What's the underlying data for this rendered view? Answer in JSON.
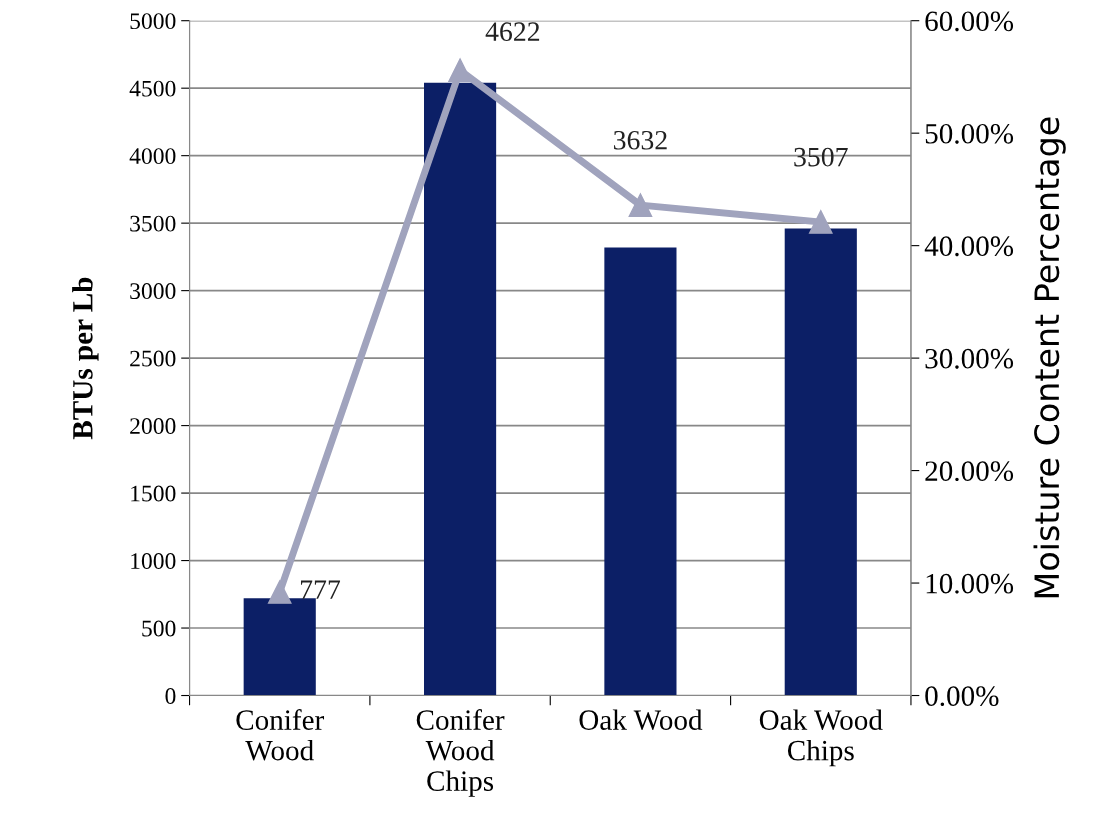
{
  "chart_data": {
    "type": "bar",
    "ylabel": "BTUs per Lb",
    "y2label": "Moisture Content Percentage",
    "categories": [
      "Conifer\nWood",
      "Conifer\nWood\nChips",
      "Oak Wood",
      "Oak Wood\nChips"
    ],
    "series": [
      {
        "color": "#0c1f66",
        "values": [
          720,
          4540,
          3320,
          3460
        ]
      },
      {
        "type": "line",
        "axis": "y2",
        "color": "#a0a3bd",
        "values": [
          9.2,
          55.6,
          43.6,
          42.1
        ],
        "marker": "triangle",
        "line_style": "solid"
      }
    ],
    "ylim": [
      0,
      5000
    ],
    "yticks": [
      0,
      500,
      1000,
      1500,
      2000,
      2500,
      3000,
      3500,
      4000,
      4500,
      5000
    ],
    "y2lim": [
      0,
      60
    ],
    "y2ticks": [
      {
        "value": 0,
        "label": "0.00%"
      },
      {
        "value": 10,
        "label": "10.00%"
      },
      {
        "value": 20,
        "label": "20.00%"
      },
      {
        "value": 30,
        "label": "30.00%"
      },
      {
        "value": 40,
        "label": "40.00%"
      },
      {
        "value": 50,
        "label": "50.00%"
      },
      {
        "value": 60,
        "label": "60.00%"
      }
    ],
    "annotations": [
      "777",
      "4622",
      "3632",
      "3507"
    ],
    "grid": "y",
    "legend": false
  }
}
